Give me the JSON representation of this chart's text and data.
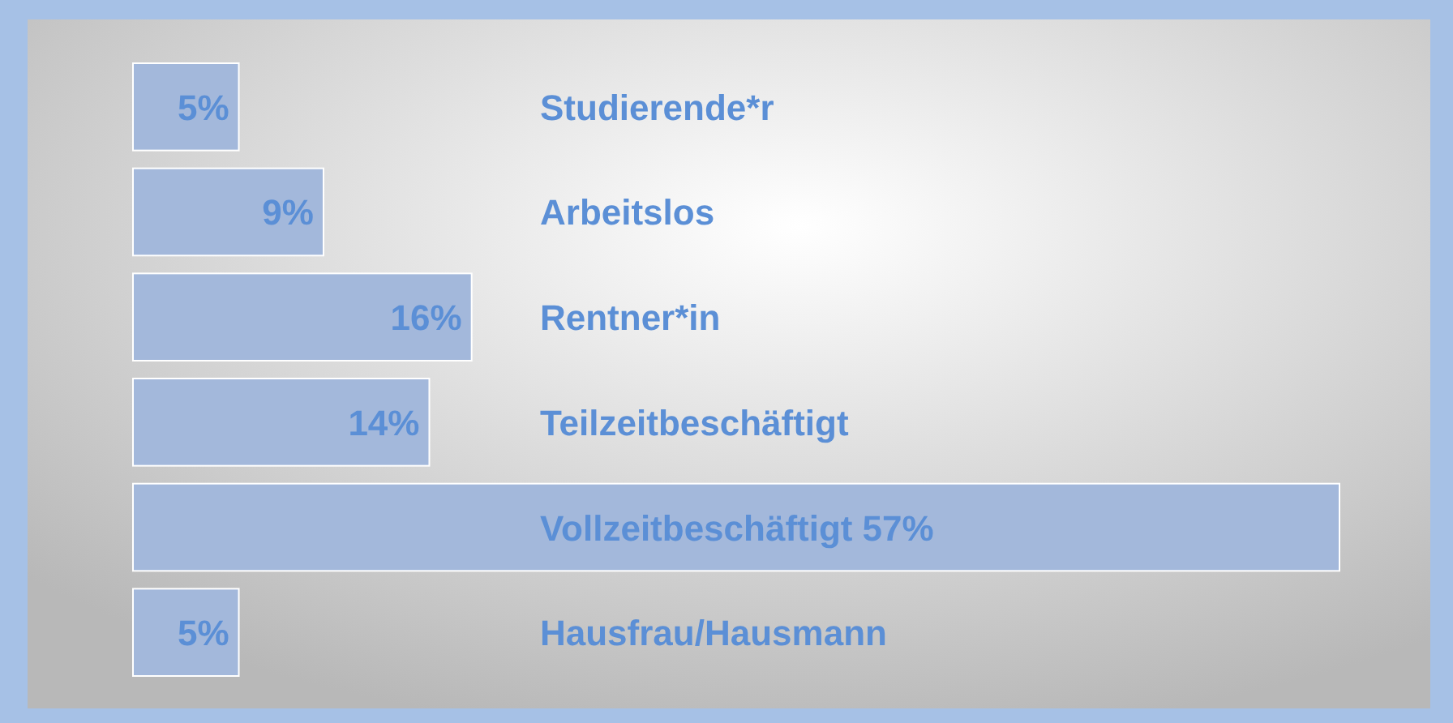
{
  "chart_data": {
    "type": "bar",
    "orientation": "horizontal",
    "categories": [
      "Studierende*r",
      "Arbeitslos",
      "Rentner*in",
      "Teilzeitbeschäftigt",
      "Vollzeitbeschäftigt",
      "Hausfrau/Hausmann"
    ],
    "values": [
      5,
      9,
      16,
      14,
      57,
      5
    ],
    "value_labels": [
      "5%",
      "9%",
      "16%",
      "14%",
      "57%",
      "5%"
    ],
    "color": "#a3b8db"
  }
}
